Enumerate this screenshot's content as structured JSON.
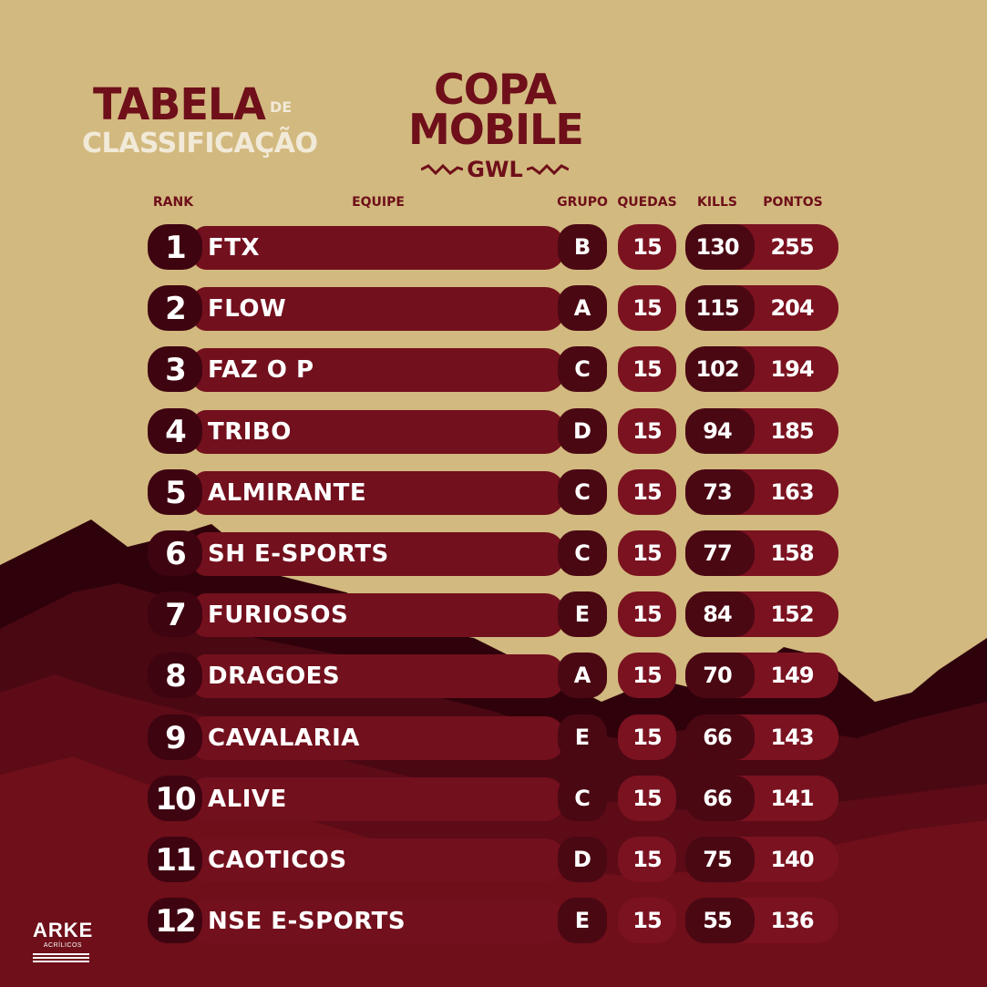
{
  "title": {
    "main": "TABELA",
    "de": "DE",
    "sub": "CLASSIFICAÇÃO"
  },
  "logo": {
    "line1": "COPA",
    "line2": "MOBILE",
    "sub": "GWL"
  },
  "headers": {
    "rank": "RANK",
    "equipe": "EQUIPE",
    "grupo": "GRUPO",
    "quedas": "QUEDAS",
    "kills": "KILLS",
    "pontos": "PONTOS"
  },
  "rows": [
    {
      "rank": "1",
      "team": "FTX",
      "group": "B",
      "quedas": "15",
      "kills": "130",
      "pontos": "255"
    },
    {
      "rank": "2",
      "team": "FLOW",
      "group": "A",
      "quedas": "15",
      "kills": "115",
      "pontos": "204"
    },
    {
      "rank": "3",
      "team": "FAZ O P",
      "group": "C",
      "quedas": "15",
      "kills": "102",
      "pontos": "194"
    },
    {
      "rank": "4",
      "team": "TRIBO",
      "group": "D",
      "quedas": "15",
      "kills": "94",
      "pontos": "185"
    },
    {
      "rank": "5",
      "team": "ALMIRANTE",
      "group": "C",
      "quedas": "15",
      "kills": "73",
      "pontos": "163"
    },
    {
      "rank": "6",
      "team": "SH E-SPORTS",
      "group": "C",
      "quedas": "15",
      "kills": "77",
      "pontos": "158"
    },
    {
      "rank": "7",
      "team": "FURIOSOS",
      "group": "E",
      "quedas": "15",
      "kills": "84",
      "pontos": "152"
    },
    {
      "rank": "8",
      "team": "DRAGOES",
      "group": "A",
      "quedas": "15",
      "kills": "70",
      "pontos": "149"
    },
    {
      "rank": "9",
      "team": "CAVALARIA",
      "group": "E",
      "quedas": "15",
      "kills": "66",
      "pontos": "143"
    },
    {
      "rank": "10",
      "team": "ALIVE",
      "group": "C",
      "quedas": "15",
      "kills": "66",
      "pontos": "141"
    },
    {
      "rank": "11",
      "team": "CAOTICOS",
      "group": "D",
      "quedas": "15",
      "kills": "75",
      "pontos": "140"
    },
    {
      "rank": "12",
      "team": "NSE E-SPORTS",
      "group": "E",
      "quedas": "15",
      "kills": "55",
      "pontos": "136"
    }
  ],
  "brand": {
    "name": "ARKE",
    "sub": "ACRÍLICOS"
  },
  "colors": {
    "background": "#d2b97f",
    "maroon": "#6e0f1a",
    "dark_maroon": "#3e0410",
    "row_bar": "#73101d",
    "accent_text": "#f2ead8"
  }
}
